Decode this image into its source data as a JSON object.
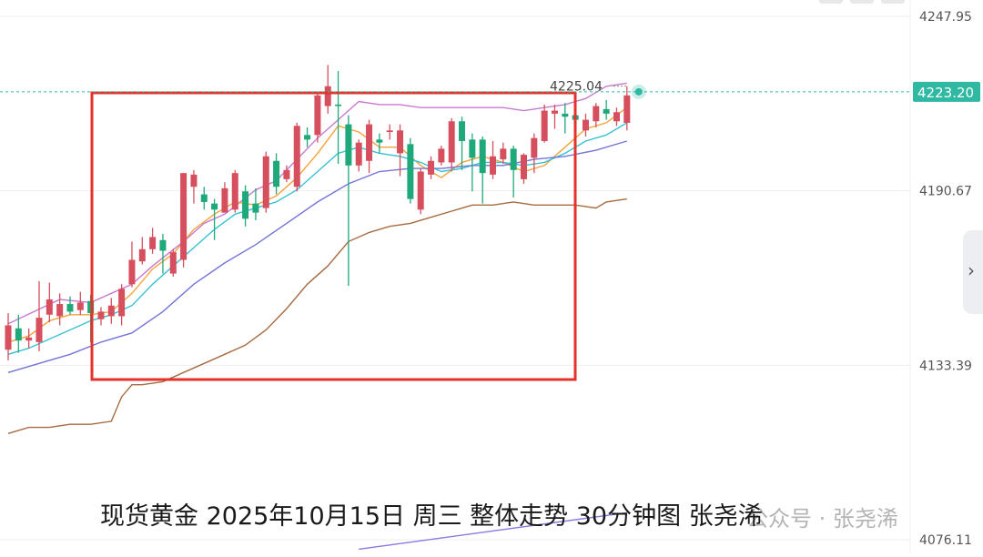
{
  "chart_data": {
    "type": "candlestick",
    "instrument": "现货黄金",
    "timeframe": "30分钟",
    "y_ticks": [
      4247.95,
      4190.67,
      4133.39,
      4076.11
    ],
    "y_tick_labels": [
      "4247.95",
      "4190.67",
      "4133.39",
      "4076.11"
    ],
    "ylim": [
      4076.11,
      4247.95
    ],
    "current_price": 4223.2,
    "current_price_label": "4223.20",
    "high_marker": 4225.04,
    "high_marker_label": "4225.04",
    "grid": true,
    "candles": [
      [
        4138.5,
        4146.5,
        4135.0,
        4150.5
      ],
      [
        4145.5,
        4141.5,
        4137.5,
        4150.0
      ],
      [
        4141.5,
        4142.5,
        4139.0,
        4145.5
      ],
      [
        4141.0,
        4149.0,
        4138.0,
        4161.0
      ],
      [
        4150.0,
        4155.0,
        4147.5,
        4160.5
      ],
      [
        4149.5,
        4153.5,
        4146.5,
        4157.0
      ],
      [
        4153.5,
        4151.0,
        4150.0,
        4156.0
      ],
      [
        4151.5,
        4154.0,
        4150.0,
        4157.5
      ],
      [
        4154.5,
        4150.5,
        4141.0,
        4156.5
      ],
      [
        4148.5,
        4151.0,
        4146.5,
        4152.5
      ],
      [
        4149.5,
        4153.0,
        4147.0,
        4155.5
      ],
      [
        4149.5,
        4158.5,
        4146.5,
        4160.0
      ],
      [
        4160.0,
        4168.0,
        4159.0,
        4174.0
      ],
      [
        4167.5,
        4171.5,
        4166.5,
        4175.5
      ],
      [
        4171.5,
        4175.5,
        4170.0,
        4178.5
      ],
      [
        4174.5,
        4171.0,
        4163.5,
        4176.5
      ],
      [
        4163.5,
        4170.5,
        4162.5,
        4171.5
      ],
      [
        4168.0,
        4196.5,
        4165.5,
        4196.5
      ],
      [
        4192.0,
        4196.0,
        4186.5,
        4197.5
      ],
      [
        4189.5,
        4187.0,
        4184.5,
        4192.0
      ],
      [
        4186.5,
        4184.5,
        4174.5,
        4188.0
      ],
      [
        4183.5,
        4191.5,
        4183.5,
        4193.5
      ],
      [
        4184.5,
        4196.5,
        4183.5,
        4197.5
      ],
      [
        4190.5,
        4181.5,
        4179.0,
        4192.5
      ],
      [
        4186.5,
        4183.5,
        4181.0,
        4191.5
      ],
      [
        4185.0,
        4202.0,
        4183.5,
        4203.5
      ],
      [
        4200.5,
        4192.0,
        4189.5,
        4203.0
      ],
      [
        4194.5,
        4197.5,
        4193.5,
        4199.0
      ],
      [
        4192.0,
        4212.0,
        4190.5,
        4213.0
      ],
      [
        4209.0,
        4207.5,
        4205.0,
        4211.5
      ],
      [
        4209.0,
        4222.0,
        4206.5,
        4222.5
      ],
      [
        4218.5,
        4225.0,
        4216.0,
        4232.0
      ],
      [
        4219.0,
        4218.5,
        4199.5,
        4230.0
      ],
      [
        4212.5,
        4199.0,
        4159.5,
        4215.5
      ],
      [
        4199.0,
        4206.5,
        4197.0,
        4207.5
      ],
      [
        4200.5,
        4212.5,
        4196.5,
        4214.0
      ],
      [
        4207.5,
        4206.5,
        4203.0,
        4209.5
      ],
      [
        4210.0,
        4210.5,
        4207.5,
        4212.5
      ],
      [
        4203.0,
        4210.5,
        4195.5,
        4212.5
      ],
      [
        4206.0,
        4188.0,
        4186.5,
        4208.0
      ],
      [
        4184.5,
        4197.0,
        4183.0,
        4198.0
      ],
      [
        4196.0,
        4200.5,
        4194.5,
        4202.0
      ],
      [
        4200.0,
        4204.5,
        4199.0,
        4205.5
      ],
      [
        4200.0,
        4213.5,
        4197.0,
        4214.5
      ],
      [
        4213.5,
        4207.0,
        4197.5,
        4215.0
      ],
      [
        4207.5,
        4201.5,
        4190.5,
        4209.5
      ],
      [
        4207.5,
        4196.5,
        4186.5,
        4208.5
      ],
      [
        4196.0,
        4202.0,
        4194.5,
        4207.0
      ],
      [
        4201.0,
        4204.5,
        4199.5,
        4206.5
      ],
      [
        4204.5,
        4197.5,
        4188.5,
        4205.5
      ],
      [
        4194.5,
        4202.5,
        4193.0,
        4203.0
      ],
      [
        4201.5,
        4208.0,
        4196.5,
        4209.5
      ],
      [
        4207.0,
        4217.0,
        4206.5,
        4219.0
      ],
      [
        4216.0,
        4217.0,
        4211.0,
        4219.0
      ],
      [
        4216.0,
        4215.0,
        4209.5,
        4219.5
      ],
      [
        4215.5,
        4214.0,
        4212.5,
        4217.5
      ],
      [
        4210.5,
        4214.0,
        4208.5,
        4216.0
      ],
      [
        4213.5,
        4218.5,
        4211.5,
        4219.5
      ],
      [
        4217.5,
        4216.0,
        4214.0,
        4220.5
      ],
      [
        4213.5,
        4216.5,
        4212.0,
        4218.0
      ],
      [
        4213.0,
        4222.0,
        4210.5,
        4225.0
      ]
    ],
    "lines": [
      {
        "role": "bollinger-upper",
        "color": "#c97ad0",
        "points": [
          [
            0,
            4147
          ],
          [
            5,
            4155
          ],
          [
            8,
            4154
          ],
          [
            12,
            4160
          ],
          [
            14,
            4166
          ],
          [
            17,
            4174
          ],
          [
            19,
            4180
          ],
          [
            21,
            4183
          ],
          [
            24,
            4191
          ],
          [
            26,
            4194
          ],
          [
            28,
            4201
          ],
          [
            30,
            4208
          ],
          [
            32,
            4214
          ],
          [
            34,
            4220
          ],
          [
            36,
            4219
          ],
          [
            38,
            4219
          ],
          [
            40,
            4218
          ],
          [
            42,
            4218
          ],
          [
            44,
            4218
          ],
          [
            46,
            4218
          ],
          [
            48,
            4218
          ],
          [
            50,
            4217
          ],
          [
            52,
            4218
          ],
          [
            54,
            4219
          ],
          [
            56,
            4221
          ],
          [
            58,
            4225
          ],
          [
            60,
            4226
          ]
        ]
      },
      {
        "role": "ma-fast",
        "color": "#f3a33b",
        "points": [
          [
            0,
            4141
          ],
          [
            2,
            4143
          ],
          [
            4,
            4148
          ],
          [
            6,
            4150
          ],
          [
            8,
            4150
          ],
          [
            10,
            4151
          ],
          [
            12,
            4157
          ],
          [
            14,
            4165
          ],
          [
            16,
            4170
          ],
          [
            18,
            4178
          ],
          [
            20,
            4183
          ],
          [
            22,
            4187
          ],
          [
            24,
            4186
          ],
          [
            26,
            4189
          ],
          [
            28,
            4195
          ],
          [
            30,
            4203
          ],
          [
            32,
            4212
          ],
          [
            34,
            4210
          ],
          [
            36,
            4205
          ],
          [
            38,
            4205
          ],
          [
            40,
            4199
          ],
          [
            42,
            4195
          ],
          [
            44,
            4200
          ],
          [
            46,
            4202
          ],
          [
            48,
            4200
          ],
          [
            50,
            4197
          ],
          [
            52,
            4199
          ],
          [
            54,
            4205
          ],
          [
            56,
            4211
          ],
          [
            58,
            4213
          ],
          [
            60,
            4218
          ]
        ]
      },
      {
        "role": "ma-mid",
        "color": "#36c2d2",
        "points": [
          [
            0,
            4137
          ],
          [
            2,
            4139
          ],
          [
            4,
            4142
          ],
          [
            6,
            4145
          ],
          [
            8,
            4148
          ],
          [
            10,
            4150
          ],
          [
            12,
            4153
          ],
          [
            14,
            4160
          ],
          [
            16,
            4166
          ],
          [
            18,
            4172
          ],
          [
            20,
            4178
          ],
          [
            22,
            4183
          ],
          [
            24,
            4185
          ],
          [
            26,
            4187
          ],
          [
            28,
            4191
          ],
          [
            30,
            4197
          ],
          [
            32,
            4203
          ],
          [
            34,
            4205
          ],
          [
            36,
            4203
          ],
          [
            38,
            4202
          ],
          [
            40,
            4200
          ],
          [
            42,
            4197
          ],
          [
            44,
            4198
          ],
          [
            46,
            4200
          ],
          [
            48,
            4200
          ],
          [
            50,
            4199
          ],
          [
            52,
            4200
          ],
          [
            54,
            4203
          ],
          [
            56,
            4207
          ],
          [
            58,
            4209
          ],
          [
            60,
            4213
          ]
        ]
      },
      {
        "role": "ma-slow",
        "color": "#7474d8",
        "points": [
          [
            0,
            4131
          ],
          [
            3,
            4134
          ],
          [
            6,
            4137
          ],
          [
            9,
            4141
          ],
          [
            12,
            4144
          ],
          [
            15,
            4151
          ],
          [
            18,
            4160
          ],
          [
            21,
            4167
          ],
          [
            24,
            4173
          ],
          [
            27,
            4180
          ],
          [
            30,
            4187
          ],
          [
            33,
            4193
          ],
          [
            36,
            4197
          ],
          [
            39,
            4198
          ],
          [
            42,
            4198
          ],
          [
            45,
            4199
          ],
          [
            48,
            4199
          ],
          [
            51,
            4201
          ],
          [
            54,
            4202
          ],
          [
            57,
            4204
          ],
          [
            60,
            4207
          ]
        ]
      },
      {
        "role": "bollinger-lower",
        "color": "#a66b40",
        "points": [
          [
            0,
            4111
          ],
          [
            2,
            4113
          ],
          [
            4,
            4113
          ],
          [
            6,
            4114
          ],
          [
            8,
            4114
          ],
          [
            10,
            4115
          ],
          [
            11,
            4123
          ],
          [
            12,
            4127
          ],
          [
            13,
            4127
          ],
          [
            15,
            4128
          ],
          [
            17,
            4131
          ],
          [
            19,
            4134
          ],
          [
            21,
            4137
          ],
          [
            23,
            4140
          ],
          [
            25,
            4145
          ],
          [
            27,
            4152
          ],
          [
            29,
            4160
          ],
          [
            31,
            4166
          ],
          [
            33,
            4174
          ],
          [
            35,
            4177
          ],
          [
            37,
            4179
          ],
          [
            39,
            4180
          ],
          [
            41,
            4182
          ],
          [
            43,
            4184
          ],
          [
            45,
            4186
          ],
          [
            47,
            4186
          ],
          [
            49,
            4187
          ],
          [
            51,
            4186
          ],
          [
            53,
            4186
          ],
          [
            55,
            4186
          ],
          [
            57,
            4185
          ],
          [
            58,
            4187
          ],
          [
            60,
            4188
          ]
        ]
      },
      {
        "role": "trend-line",
        "color": "#8a7ae0",
        "points": [
          [
            34,
            4073
          ],
          [
            60,
            4085
          ]
        ]
      }
    ]
  },
  "caption": "现货黄金 2025年10月15日 周三 整体走势 30分钟图 张尧浠",
  "watermark": "公众号 · 张尧浠",
  "highlight_box_color": "#e4322b",
  "up_color": "#d64f5e",
  "down_color": "#1fa87a",
  "side_tab_icon": "chevron-right-icon"
}
